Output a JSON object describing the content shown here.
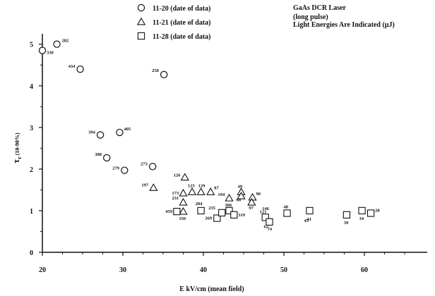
{
  "chart_data": {
    "type": "scatter",
    "xlabel": "E kV/cm (mean field)",
    "ylabel_main": "τ",
    "ylabel_sub": "r",
    "ylabel_suffix": "(10-90%)",
    "xlim": [
      20,
      67
    ],
    "ylim": [
      0,
      5.3
    ],
    "xticks": [
      20,
      30,
      40,
      50,
      60
    ],
    "yticks": [
      0,
      1,
      2,
      3,
      4,
      5
    ],
    "notes": [
      "GaAs DCR Laser",
      "(long pulse)",
      "Light Energies Are Indicated (μJ)"
    ],
    "series": [
      {
        "name": "11-20 (date of data)",
        "marker": "circle",
        "points": [
          {
            "x": 20.0,
            "y": 4.85,
            "label": "330"
          },
          {
            "x": 21.8,
            "y": 5.0,
            "label": "282"
          },
          {
            "x": 24.7,
            "y": 4.4,
            "label": "434"
          },
          {
            "x": 35.1,
            "y": 4.27,
            "label": "258"
          },
          {
            "x": 27.2,
            "y": 2.82,
            "label": "394"
          },
          {
            "x": 29.6,
            "y": 2.88,
            "label": "405"
          },
          {
            "x": 28.0,
            "y": 2.27,
            "label": "388"
          },
          {
            "x": 30.2,
            "y": 1.97,
            "label": "279"
          },
          {
            "x": 33.7,
            "y": 2.06,
            "label": "273"
          }
        ]
      },
      {
        "name": "11-21 (date of data)",
        "marker": "triangle",
        "points": [
          {
            "x": 33.8,
            "y": 1.55,
            "label": "197"
          },
          {
            "x": 37.7,
            "y": 1.8,
            "label": "126"
          },
          {
            "x": 37.5,
            "y": 1.42,
            "label": "173"
          },
          {
            "x": 38.6,
            "y": 1.45,
            "label": "125"
          },
          {
            "x": 39.7,
            "y": 1.45,
            "label": "129"
          },
          {
            "x": 40.9,
            "y": 1.45,
            "label": "87"
          },
          {
            "x": 37.5,
            "y": 1.2,
            "label": "231"
          },
          {
            "x": 37.5,
            "y": 0.98,
            "label": "356"
          },
          {
            "x": 43.2,
            "y": 1.3,
            "label": "194"
          },
          {
            "x": 44.7,
            "y": 1.45,
            "label": "49"
          },
          {
            "x": 44.7,
            "y": 1.35,
            "label": "68"
          },
          {
            "x": 46.1,
            "y": 1.32,
            "label": "90"
          },
          {
            "x": 46.0,
            "y": 1.2,
            "label": "97"
          }
        ]
      },
      {
        "name": "11-28 (date of data)",
        "marker": "square",
        "points": [
          {
            "x": 36.7,
            "y": 0.98,
            "label": "459"
          },
          {
            "x": 39.7,
            "y": 1.0,
            "label": "284"
          },
          {
            "x": 41.7,
            "y": 0.82,
            "label": "269"
          },
          {
            "x": 42.3,
            "y": 0.95,
            "label": "235"
          },
          {
            "x": 43.2,
            "y": 1.0,
            "label": "306"
          },
          {
            "x": 43.8,
            "y": 0.9,
            "label": "319"
          },
          {
            "x": 47.7,
            "y": 0.84,
            "label": "121"
          },
          {
            "x": 48.2,
            "y": 0.73,
            "label": "74"
          },
          {
            "x": 50.4,
            "y": 0.94,
            "label": "48"
          },
          {
            "x": 53.2,
            "y": 1.0,
            "label": "41"
          },
          {
            "x": 57.8,
            "y": 0.9,
            "label": "39"
          },
          {
            "x": 59.7,
            "y": 1.0,
            "label": "34"
          },
          {
            "x": 60.8,
            "y": 0.94,
            "label": "28"
          }
        ]
      }
    ],
    "extra_labels": [
      {
        "x": 48.0,
        "y": 1.02,
        "text": "146"
      },
      {
        "x": 48.2,
        "y": 0.58,
        "text": "62"
      },
      {
        "x": 53.2,
        "y": 0.73,
        "text": "45"
      }
    ]
  }
}
